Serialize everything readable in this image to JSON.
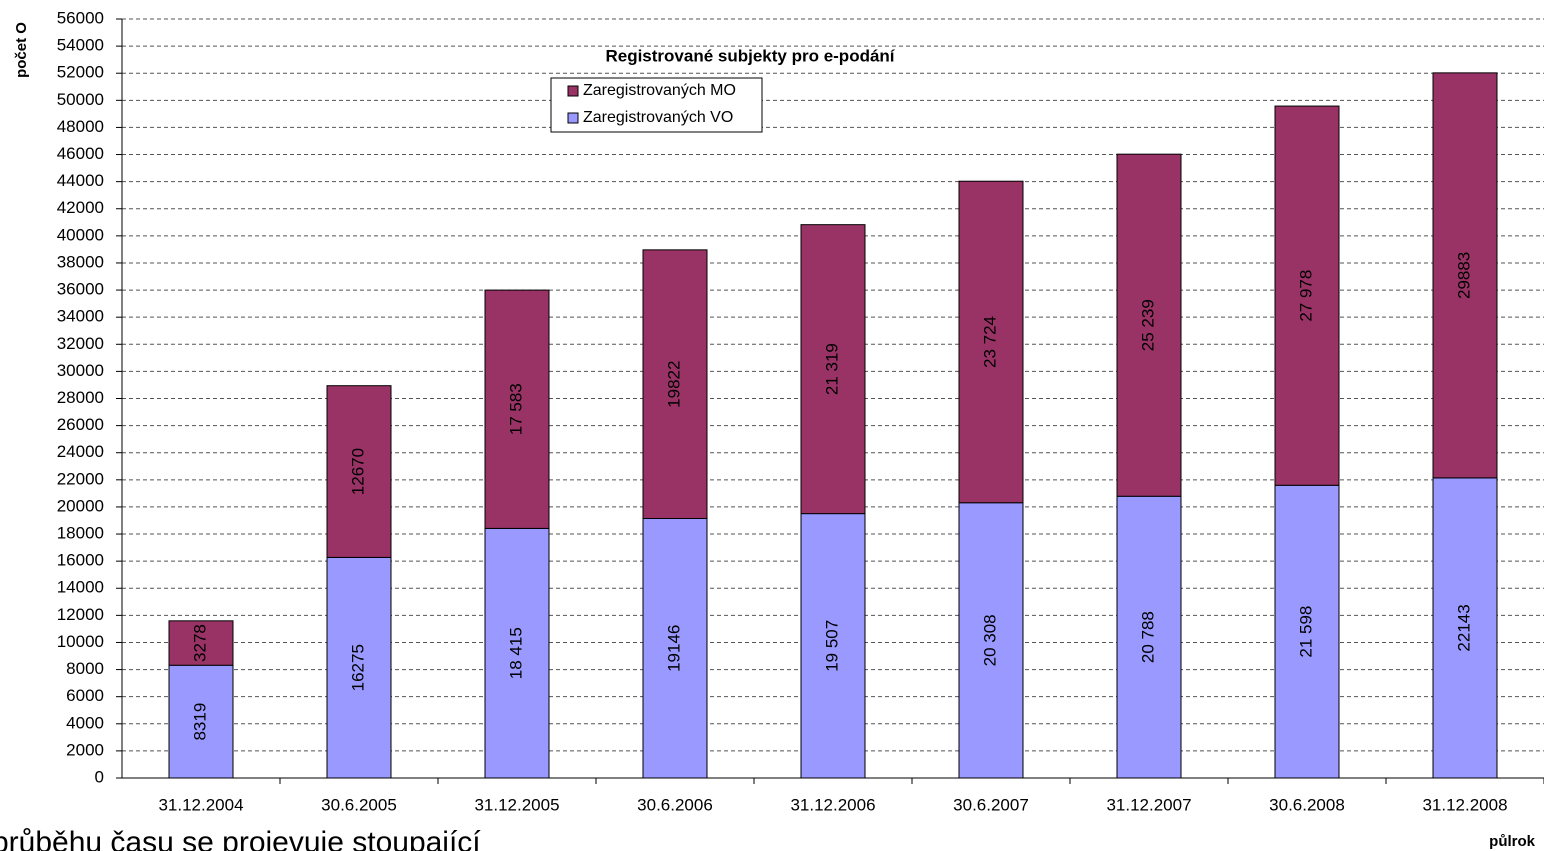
{
  "chart_data": {
    "type": "stacked_bar",
    "title": "Registrované subjekty pro e-podání",
    "y_label": "počet O",
    "x_label": "půlrok",
    "annotation": "průběhu času se projevuje stoupající",
    "categories": [
      "31.12.2004",
      "30.6.2005",
      "31.12.2005",
      "30.6.2006",
      "31.12.2006",
      "30.6.2007",
      "31.12.2007",
      "30.6.2008",
      "31.12.2008"
    ],
    "series": [
      {
        "name": "Zaregistrovaných VO",
        "color": "#9999ff",
        "values": [
          8319,
          16275,
          18415,
          19146,
          19507,
          20308,
          20788,
          21598,
          22143
        ],
        "value_labels": [
          "8319",
          "16275",
          "18 415",
          "19146",
          "19 507",
          "20 308",
          "20 788",
          "21 598",
          "22143"
        ]
      },
      {
        "name": "Zaregistrovaných MO",
        "color": "#993366",
        "values": [
          3278,
          12670,
          17583,
          19822,
          21319,
          23724,
          25239,
          27978,
          29883
        ],
        "value_labels": [
          "3278",
          "12670",
          "17 583",
          "19822",
          "21 319",
          "23 724",
          "25 239",
          "27 978",
          "29883"
        ]
      }
    ],
    "ylim": [
      0,
      56000
    ],
    "yticks": [
      0,
      2000,
      4000,
      6000,
      8000,
      10000,
      12000,
      14000,
      16000,
      18000,
      20000,
      22000,
      24000,
      26000,
      28000,
      30000,
      32000,
      34000,
      36000,
      38000,
      40000,
      42000,
      44000,
      46000,
      48000,
      50000,
      52000,
      54000,
      56000
    ],
    "grid": true
  }
}
